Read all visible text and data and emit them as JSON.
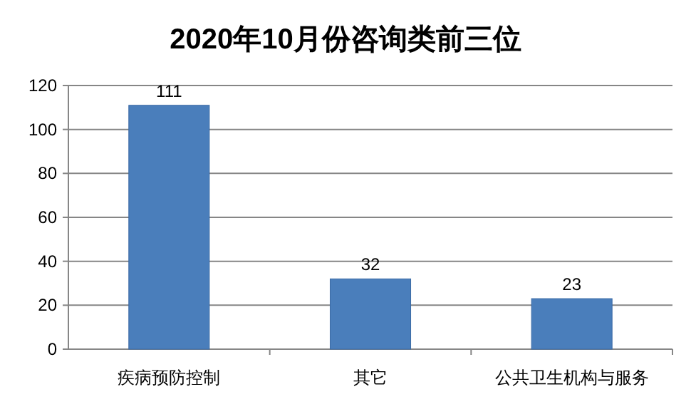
{
  "chart_data": {
    "type": "bar",
    "title": "2020年10月份咨询类前三位",
    "categories": [
      "疾病预防控制",
      "其它",
      "公共卫生机构与服务"
    ],
    "values": [
      111,
      32,
      23
    ],
    "color": "#4a7ebb",
    "ylim": [
      0,
      120
    ],
    "yticks": [
      0,
      20,
      40,
      60,
      80,
      100,
      120
    ],
    "grid": "y",
    "data_labels": true
  }
}
